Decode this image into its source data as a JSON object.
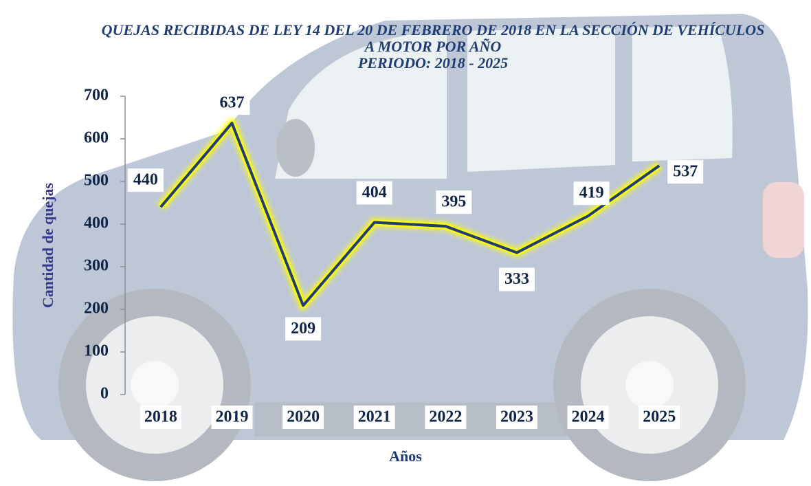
{
  "chart_data": {
    "type": "line",
    "title": "QUEJAS RECIBIDAS DE LEY 14 DEL 20 DE FEBRERO DE 2018 EN LA SECCIÓN DE VEHÍCULOS A MOTOR POR AÑO",
    "subtitle": "PERIODO: 2018 - 2025",
    "x_label": "Años",
    "y_label": "Cantidad de quejas",
    "categories": [
      "2018",
      "2019",
      "2020",
      "2021",
      "2022",
      "2023",
      "2024",
      "2025"
    ],
    "values": [
      440,
      637,
      209,
      404,
      395,
      333,
      419,
      537
    ],
    "color": "#1f3c73",
    "glow_color": "#ffff00",
    "ylim": [
      0,
      700
    ],
    "yticks": [
      0,
      100,
      200,
      300,
      400,
      500,
      600,
      700
    ]
  }
}
